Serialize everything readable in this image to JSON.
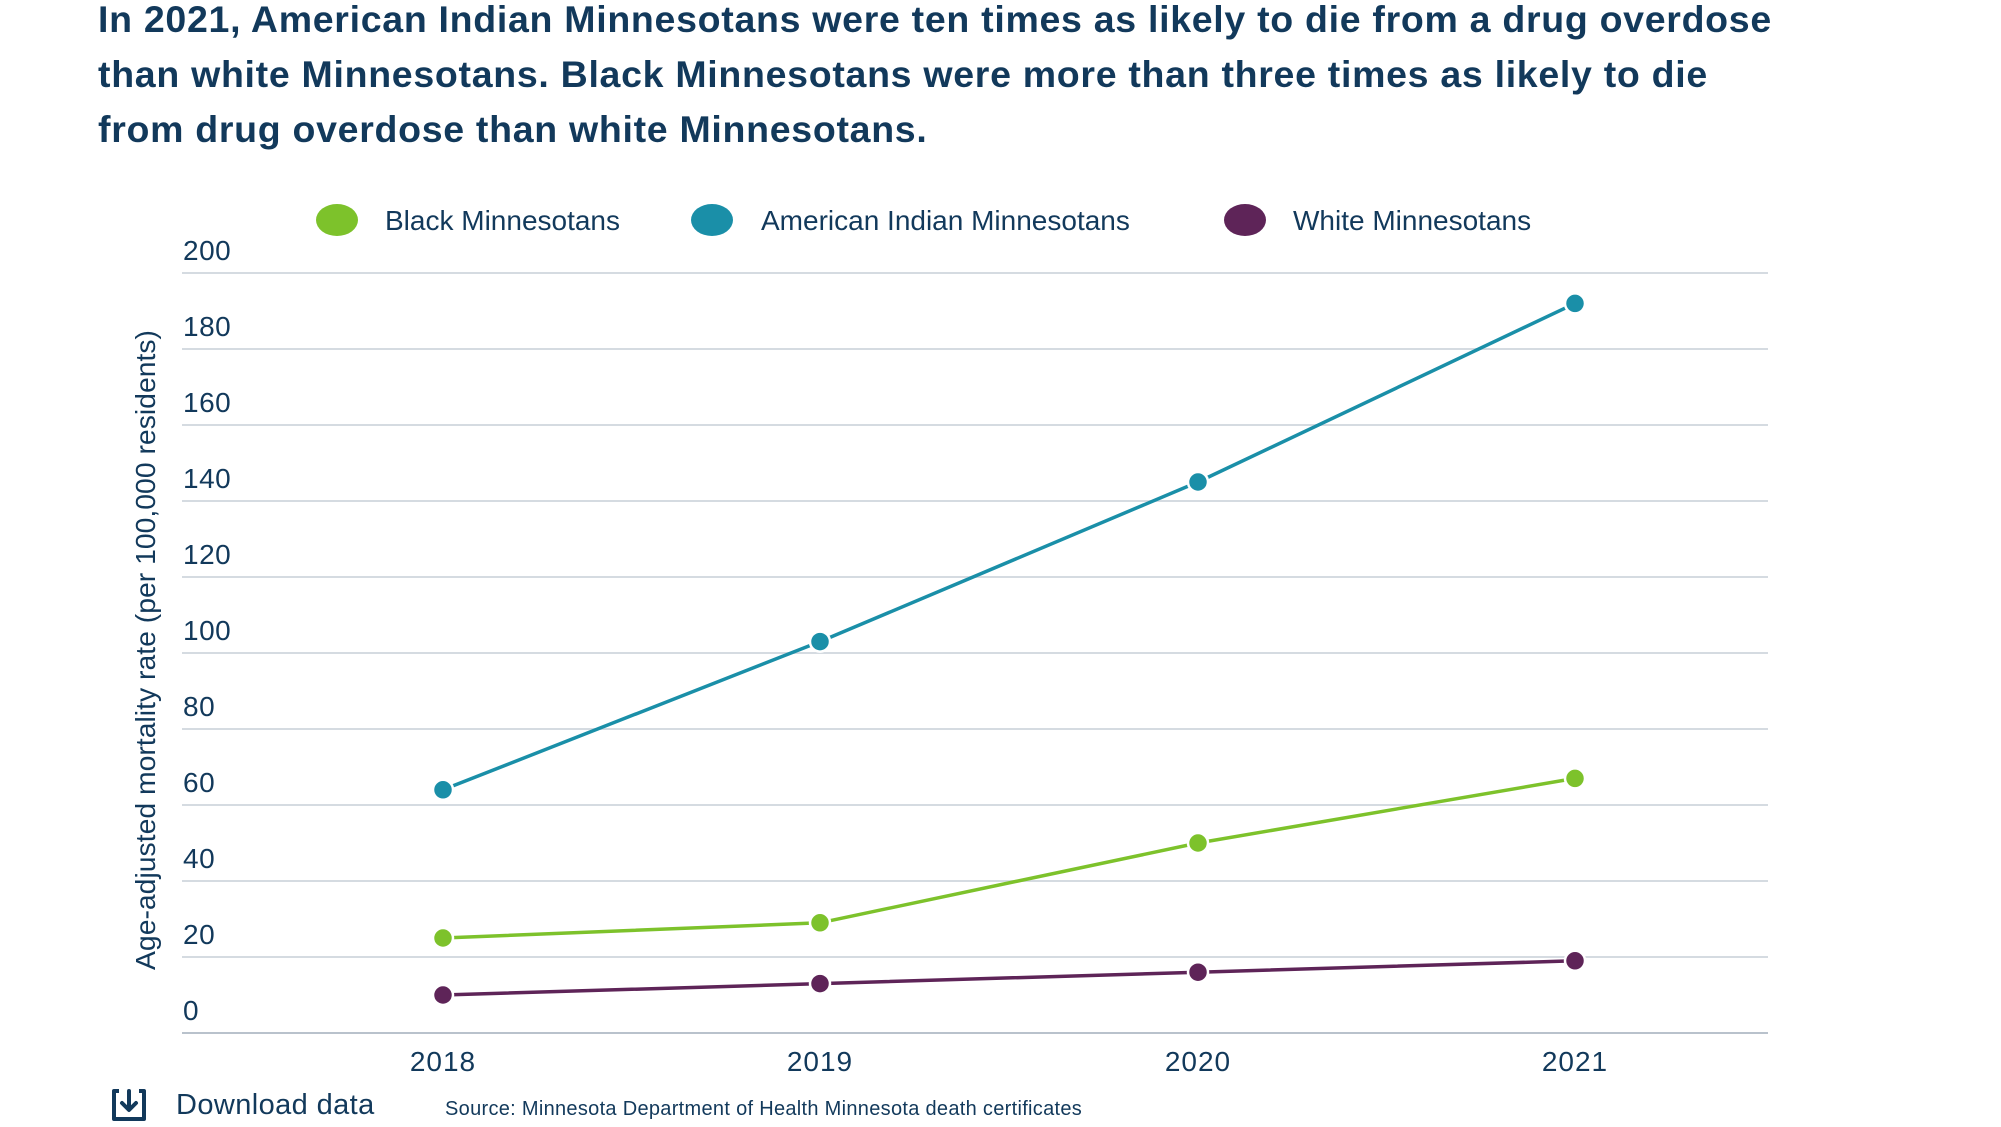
{
  "title": "In 2021, American Indian Minnesotans were ten times as likely to die from a drug overdose than white Minnesotans. Black Minnesotans were more than three times as likely to die from drug overdose than white Minnesotans.",
  "footer": {
    "download_label": "Download data",
    "source": "Source: Minnesota Department of Health Minnesota death certificates",
    "download_icon": "download-icon"
  },
  "chart_data": {
    "type": "line",
    "title": "",
    "xlabel": "",
    "ylabel": "Age-adjusted mortality rate (per 100,000 residents)",
    "x": [
      "2018",
      "2019",
      "2020",
      "2021"
    ],
    "ylim": [
      0,
      200
    ],
    "yticks": [
      0,
      20,
      40,
      60,
      80,
      100,
      120,
      140,
      160,
      180,
      200
    ],
    "grid": true,
    "legend_position": "top",
    "series": [
      {
        "name": "Black Minnesotans",
        "color": "#7dc22b",
        "values": [
          25,
          29,
          50,
          67
        ]
      },
      {
        "name": "American Indian Minnesotans",
        "color": "#1a8fa8",
        "values": [
          64,
          103,
          145,
          192
        ]
      },
      {
        "name": "White Minnesotans",
        "color": "#5e2458",
        "values": [
          10,
          13,
          16,
          19
        ]
      }
    ]
  }
}
